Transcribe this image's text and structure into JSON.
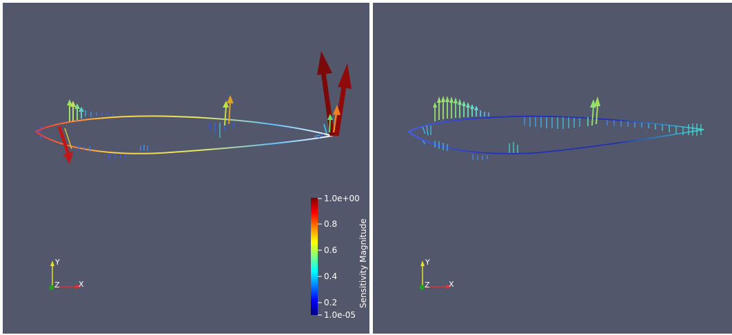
{
  "views": {
    "left": {
      "axes": {
        "y": "Y",
        "z": "Z",
        "x": "X"
      }
    },
    "right": {
      "axes": {
        "y": "Y",
        "z": "Z",
        "x": "X"
      }
    }
  },
  "colorbar": {
    "title": "Sensitivity Magnitude",
    "ticks": [
      "1.0e+00",
      "0.8",
      "0.6",
      "0.4",
      "0.2",
      "1.0e-05"
    ],
    "colormap": "jet",
    "range": [
      1e-05,
      1.0
    ]
  },
  "colors": {
    "background": "#52576b",
    "axis_x": "#e03030",
    "axis_y": "#e8e020",
    "axis_z": "#20a020"
  }
}
